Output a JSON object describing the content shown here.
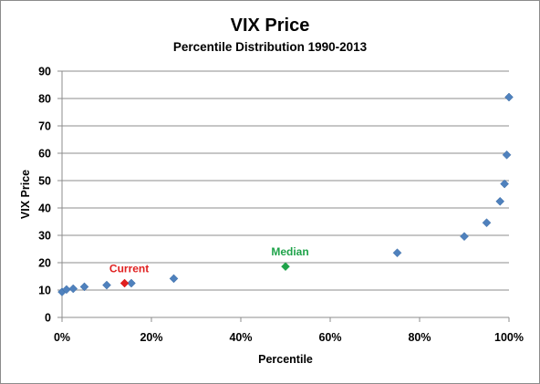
{
  "chart_data": {
    "type": "scatter",
    "title": "VIX Price",
    "subtitle": "Percentile Distribution 1990-2013",
    "xlabel": "Percentile",
    "ylabel": "VIX Price",
    "xlim": [
      0,
      1
    ],
    "ylim": [
      0,
      90
    ],
    "x_ticks": [
      0,
      0.2,
      0.4,
      0.6,
      0.8,
      1.0
    ],
    "x_tick_labels": [
      "0%",
      "20%",
      "40%",
      "60%",
      "80%",
      "100%"
    ],
    "y_ticks": [
      0,
      10,
      20,
      30,
      40,
      50,
      60,
      70,
      80,
      90
    ],
    "y_tick_labels": [
      "0",
      "10",
      "20",
      "30",
      "40",
      "50",
      "60",
      "70",
      "80",
      "90"
    ],
    "grid": "horizontal",
    "legend": "none",
    "colors": {
      "points": "#4F81BD",
      "current": "#E02020",
      "median": "#1FA34A"
    },
    "points": [
      {
        "x": 0.0,
        "y": 9.3
      },
      {
        "x": 0.01,
        "y": 10.2
      },
      {
        "x": 0.025,
        "y": 10.5
      },
      {
        "x": 0.05,
        "y": 11.2
      },
      {
        "x": 0.1,
        "y": 11.8
      },
      {
        "x": 0.155,
        "y": 12.5
      },
      {
        "x": 0.25,
        "y": 14.2
      },
      {
        "x": 0.75,
        "y": 23.6
      },
      {
        "x": 0.9,
        "y": 29.6
      },
      {
        "x": 0.95,
        "y": 34.6
      },
      {
        "x": 0.98,
        "y": 42.4
      },
      {
        "x": 0.99,
        "y": 48.8
      },
      {
        "x": 0.995,
        "y": 59.4
      },
      {
        "x": 1.0,
        "y": 80.5
      }
    ],
    "highlights": [
      {
        "label": "Current",
        "x": 0.14,
        "y": 12.5,
        "color": "#E02020"
      },
      {
        "label": "Median",
        "x": 0.5,
        "y": 18.6,
        "color": "#1FA34A"
      }
    ]
  }
}
